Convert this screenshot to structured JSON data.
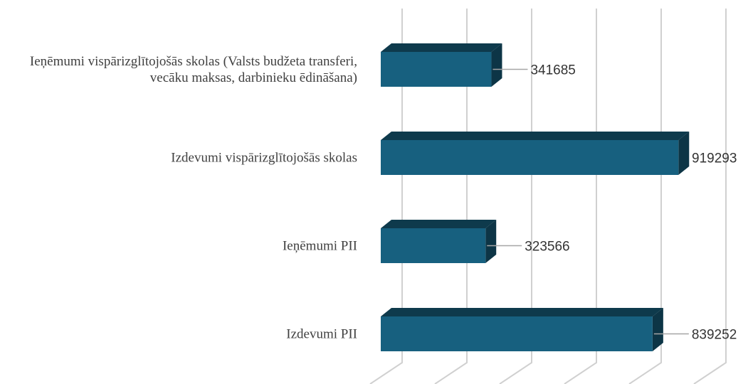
{
  "chart_data": {
    "type": "bar3d_horizontal",
    "categories": [
      "Ieņēmumi vispārizglītojošās skolas (Valsts budžeta transferi, vecāku maksas, darbinieku ēdināšana)",
      "Izdevumi vispārizglītojošās skolas",
      "Ieņēmumi PII",
      "Izdevumi PII"
    ],
    "values": [
      341685,
      919293,
      323566,
      839252
    ],
    "color": "#17607f",
    "xlim": [
      0,
      1000000
    ],
    "xticks": [
      0,
      200000,
      400000,
      600000,
      800000,
      1000000
    ],
    "grid": true
  }
}
